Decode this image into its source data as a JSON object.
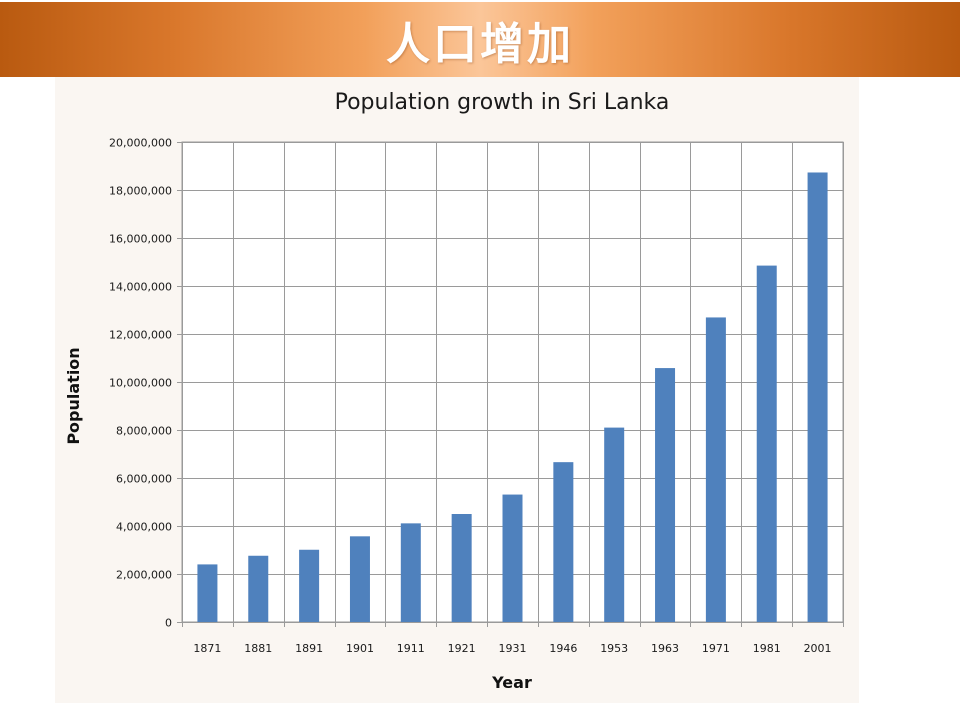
{
  "banner": {
    "title": "人口增加"
  },
  "colors": {
    "bar": "#4f81bd",
    "grid": "#9a9a9a",
    "plot_background": "#ffffff",
    "panel_background": "#faf6f2"
  },
  "chart_data": {
    "type": "bar",
    "title": "Population growth in Sri Lanka",
    "xlabel": "Year",
    "ylabel": "Population",
    "categories": [
      "1871",
      "1881",
      "1891",
      "1901",
      "1911",
      "1921",
      "1931",
      "1946",
      "1953",
      "1963",
      "1971",
      "1981",
      "2001"
    ],
    "series": [
      {
        "name": "Population",
        "values": [
          2400000,
          2760000,
          3010000,
          3570000,
          4110000,
          4500000,
          5310000,
          6660000,
          8100000,
          10580000,
          12690000,
          14850000,
          18730000
        ]
      }
    ],
    "ylim": [
      0,
      20000000
    ],
    "yticks": [
      0,
      2000000,
      4000000,
      6000000,
      8000000,
      10000000,
      12000000,
      14000000,
      16000000,
      18000000,
      20000000
    ],
    "ytick_labels": [
      "0",
      "2,000,000",
      "4,000,000",
      "6,000,000",
      "8,000,000",
      "10,000,000",
      "12,000,000",
      "14,000,000",
      "16,000,000",
      "18,000,000",
      "20,000,000"
    ],
    "grid": true,
    "legend": "none"
  }
}
